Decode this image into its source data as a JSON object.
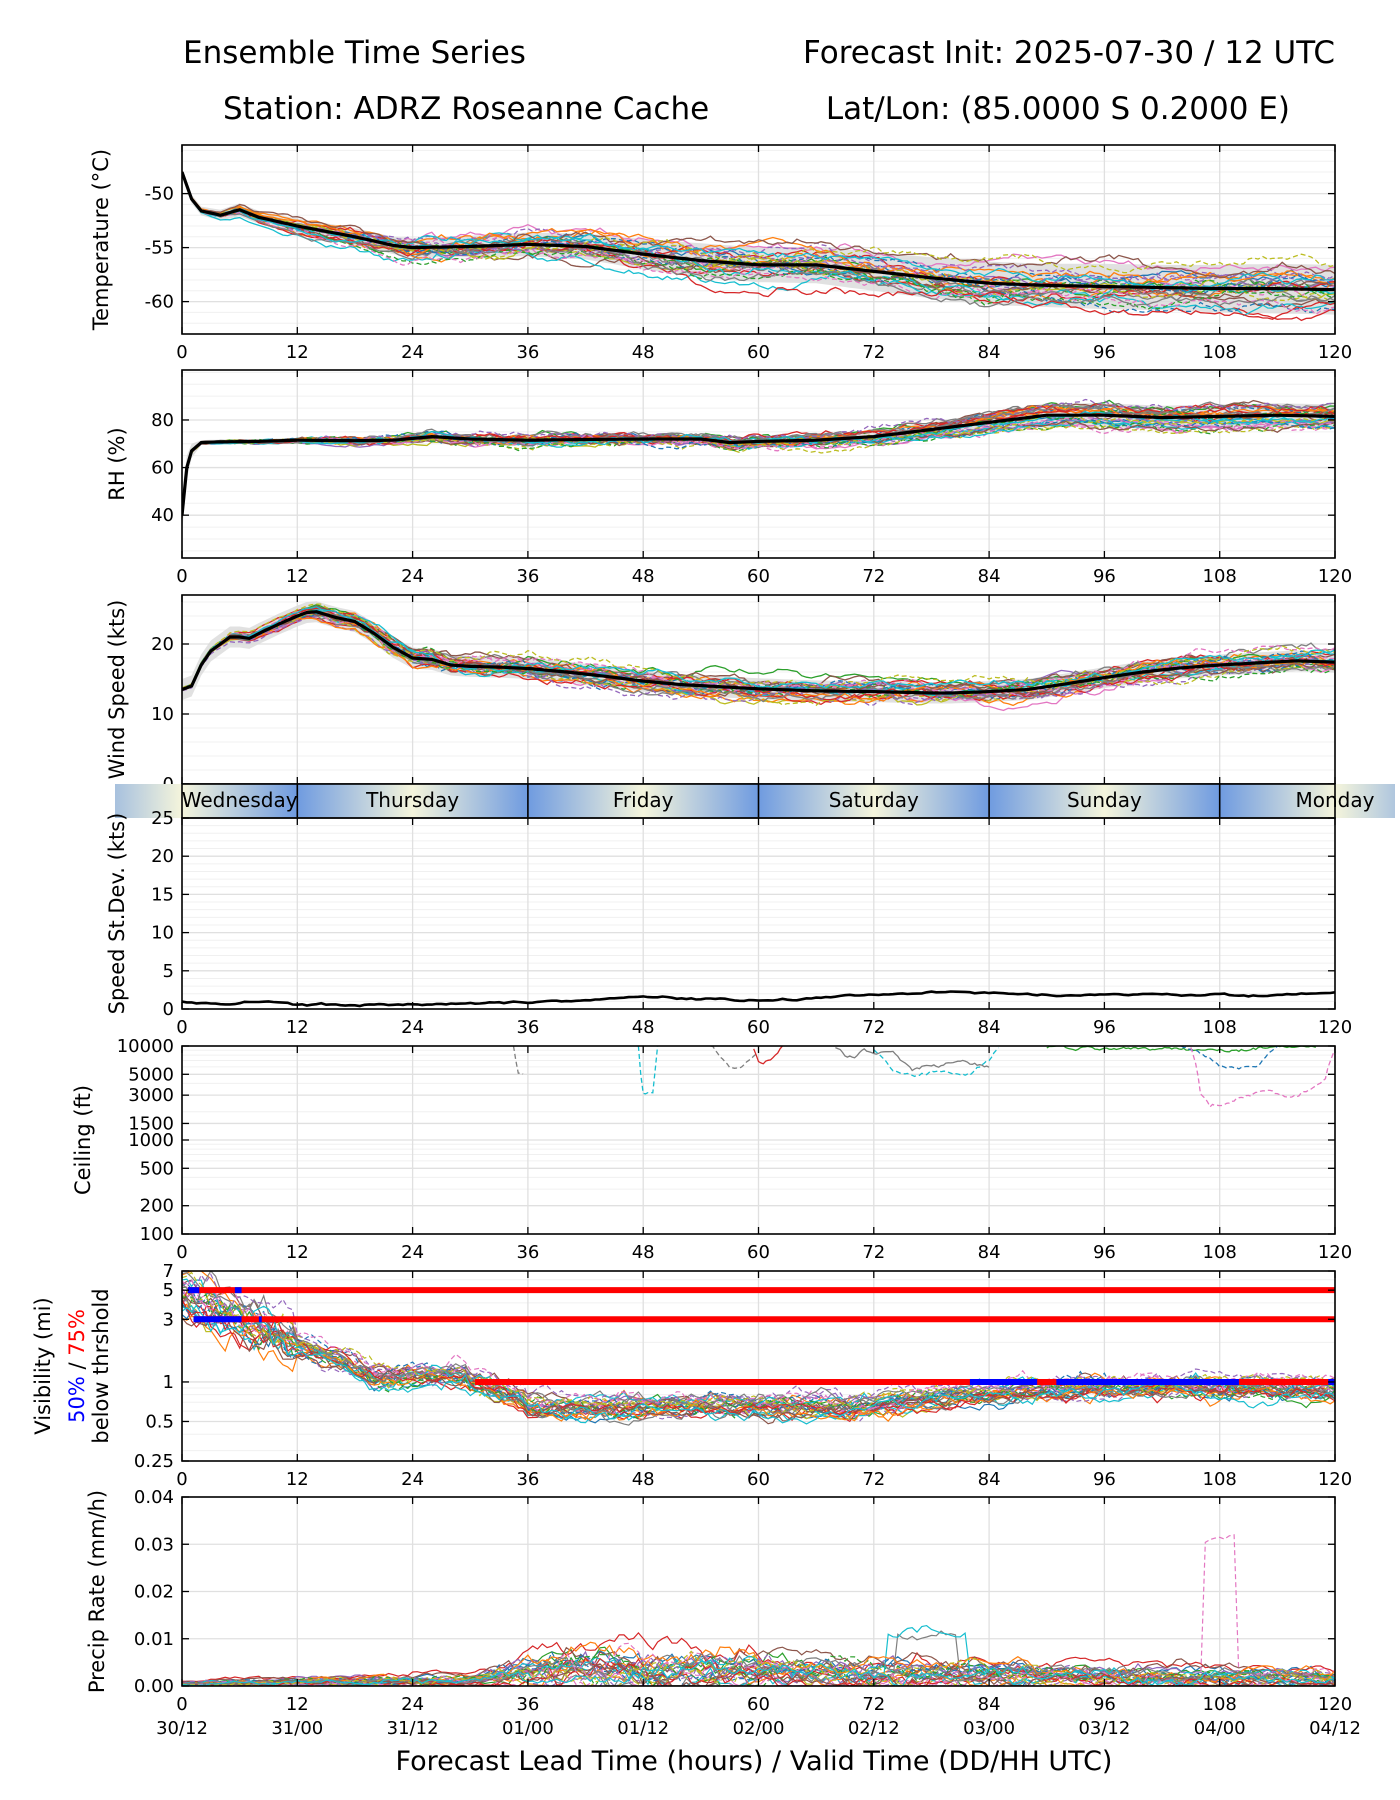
{
  "header": {
    "title_left": "Ensemble Time Series",
    "title_right": "Forecast Init: 2025-07-30 / 12 UTC",
    "station": "Station: ADRZ Roseanne Cache",
    "latlon": "Lat/Lon: (85.0000 S 0.2000 E)",
    "xlabel": "Forecast Lead Time (hours) / Valid Time (DD/HH UTC)"
  },
  "colors": {
    "mean": "#000000",
    "spread": "#d9d9d9",
    "threshold_75": "#ff0000",
    "threshold_50": "#0000ff",
    "day_band_light": "#f5f5dc",
    "day_band_blue": "#6f9be0",
    "grid": "#e0e0e0",
    "members": [
      "#1f77b4",
      "#ff7f0e",
      "#2ca02c",
      "#d62728",
      "#9467bd",
      "#8c564b",
      "#e377c2",
      "#7f7f7f",
      "#bcbd22",
      "#17becf"
    ]
  },
  "chart_data": [
    {
      "type": "line",
      "panel": "temperature",
      "ylabel": "Temperature (°C)",
      "xlim": [
        0,
        120
      ],
      "ylim": [
        -63,
        -45.5
      ],
      "x_ticks": [
        0,
        12,
        24,
        36,
        48,
        60,
        72,
        84,
        96,
        108,
        120
      ],
      "y_ticks": [
        -50,
        -55,
        -60
      ],
      "mean": {
        "x": [
          0,
          1,
          2,
          4,
          6,
          8,
          12,
          18,
          22,
          24,
          30,
          36,
          42,
          48,
          54,
          60,
          66,
          72,
          78,
          84,
          90,
          96,
          102,
          108,
          114,
          120
        ],
        "y": [
          -48,
          -50.5,
          -51.6,
          -52,
          -51.5,
          -52.2,
          -53,
          -54,
          -54.8,
          -55,
          -54.9,
          -54.7,
          -54.9,
          -55.6,
          -56.2,
          -56.6,
          -56.6,
          -57.2,
          -57.8,
          -58.3,
          -58.5,
          -58.6,
          -58.7,
          -58.8,
          -58.8,
          -58.9
        ]
      },
      "spread_half_width": [
        0.3,
        0.4,
        0.4,
        0.5,
        0.6,
        0.6,
        0.7,
        0.8,
        0.8,
        0.9,
        1.0,
        1.1,
        1.2,
        1.4,
        1.6,
        1.6,
        1.7,
        1.8,
        1.9,
        2.0,
        2.0,
        2.1,
        2.1,
        2.2,
        2.3,
        2.3
      ],
      "member_count": 30
    },
    {
      "type": "line",
      "panel": "rh",
      "ylabel": "RH (%)",
      "xlim": [
        0,
        120
      ],
      "ylim": [
        22,
        101
      ],
      "x_ticks": [
        0,
        12,
        24,
        36,
        48,
        60,
        72,
        84,
        96,
        108,
        120
      ],
      "y_ticks": [
        40,
        60,
        80
      ],
      "mean": {
        "x": [
          0,
          0.5,
          1,
          2,
          4,
          8,
          12,
          18,
          22,
          26,
          30,
          36,
          42,
          48,
          54,
          57,
          60,
          66,
          72,
          78,
          84,
          90,
          96,
          102,
          108,
          114,
          120
        ],
        "y": [
          40,
          60,
          67,
          70.5,
          70.8,
          71,
          71.5,
          71.3,
          71.5,
          73,
          72,
          71.5,
          71.8,
          72,
          72,
          70.5,
          71,
          71.5,
          73,
          76,
          79,
          82,
          82,
          81,
          81.5,
          82,
          81.5
        ]
      },
      "spread_half_width": [
        8,
        5,
        3,
        1,
        1,
        1,
        1,
        1,
        1,
        1.2,
        1.2,
        1.2,
        1.3,
        1.4,
        1.5,
        1.5,
        1.6,
        2,
        2.5,
        3,
        4,
        5,
        5,
        5,
        5,
        5,
        5
      ],
      "member_count": 30
    },
    {
      "type": "line",
      "panel": "wind_speed",
      "ylabel": "Wind Speed (kts)",
      "xlim": [
        0,
        120
      ],
      "ylim": [
        0,
        27
      ],
      "x_ticks": [
        0,
        12,
        24,
        36,
        48,
        60,
        72,
        84,
        96,
        108,
        120
      ],
      "y_ticks": [
        0,
        10,
        20
      ],
      "mean": {
        "x": [
          0,
          1,
          2,
          3,
          4,
          5,
          6,
          7,
          8,
          10,
          12,
          13,
          14,
          15,
          16,
          18,
          20,
          22,
          24,
          26,
          28,
          30,
          33,
          36,
          40,
          44,
          48,
          52,
          56,
          60,
          66,
          72,
          78,
          80,
          84,
          88,
          92,
          96,
          100,
          104,
          108,
          112,
          116,
          120
        ],
        "y": [
          13.5,
          14,
          17,
          19,
          20,
          21,
          21,
          20.8,
          21.5,
          22.8,
          24,
          24.5,
          24.6,
          24.2,
          23.8,
          23.2,
          21.5,
          19.5,
          18,
          17.8,
          17,
          16.8,
          16.7,
          16.5,
          16,
          15.4,
          14.7,
          14.2,
          13.9,
          13.6,
          13.3,
          13.2,
          13,
          13,
          13.2,
          13.5,
          14.3,
          15.2,
          16,
          16.6,
          17,
          17.3,
          17.6,
          17.4
        ]
      },
      "spread_half_width": 1.5,
      "member_count": 30
    },
    {
      "type": "band",
      "panel": "day_of_week",
      "days": [
        "Wednesday",
        "Thursday",
        "Friday",
        "Saturday",
        "Sunday",
        "Monday"
      ],
      "day_boundaries": [
        12,
        36,
        60,
        84,
        108
      ]
    },
    {
      "type": "line",
      "panel": "speed_stdev",
      "ylabel": "Speed St.Dev. (kts)",
      "xlim": [
        0,
        120
      ],
      "ylim": [
        0,
        25
      ],
      "x_ticks": [
        0,
        12,
        24,
        36,
        48,
        60,
        72,
        84,
        96,
        108,
        120
      ],
      "y_ticks": [
        0,
        5,
        10,
        15,
        20,
        25
      ],
      "series": [
        {
          "x": [
            0,
            4,
            8,
            12,
            18,
            24,
            30,
            36,
            40,
            44,
            48,
            54,
            60,
            64,
            68,
            72,
            76,
            80,
            84,
            88,
            92,
            96,
            100,
            104,
            108,
            112,
            116,
            120
          ],
          "y": [
            0.9,
            0.7,
            1.0,
            0.6,
            0.5,
            0.6,
            0.7,
            0.9,
            1.2,
            1.3,
            1.6,
            1.3,
            1.1,
            1.3,
            1.6,
            1.9,
            2.1,
            2.2,
            2.1,
            1.9,
            1.7,
            1.9,
            2.0,
            1.8,
            2.0,
            1.7,
            1.9,
            2.2
          ]
        }
      ]
    },
    {
      "type": "line",
      "panel": "ceiling",
      "ylabel": "Ceiling (ft)",
      "xlim": [
        0,
        120
      ],
      "ylim": [
        100,
        10000
      ],
      "yscale": "log",
      "x_ticks": [
        0,
        12,
        24,
        36,
        48,
        60,
        72,
        84,
        96,
        108,
        120
      ],
      "y_ticks": [
        100,
        200,
        500,
        1000,
        1500,
        3000,
        5000,
        10000
      ],
      "series": [
        {
          "style": "dashed",
          "color_index": 7,
          "x": [
            34.5,
            34.8,
            35,
            36,
            35.8,
            35.5
          ],
          "y": [
            10000,
            6500,
            5400,
            5400,
            7000,
            10000
          ]
        },
        {
          "style": "dashed",
          "color_index": 9,
          "x": [
            47.5,
            47.8,
            48,
            49,
            49.2,
            49.5
          ],
          "y": [
            10000,
            4000,
            3200,
            3200,
            4500,
            10000
          ]
        },
        {
          "style": "dashed",
          "color_index": 7,
          "x": [
            55,
            57,
            58,
            60
          ],
          "y": [
            10000,
            6200,
            6000,
            8000
          ]
        },
        {
          "style": "solid",
          "color_index": 3,
          "x": [
            59.5,
            60,
            61,
            62,
            62.5
          ],
          "y": [
            9500,
            7000,
            6800,
            8500,
            10000
          ]
        },
        {
          "style": "solid",
          "color_index": 7,
          "x": [
            68,
            69,
            70,
            71,
            74,
            76,
            78,
            81,
            84
          ],
          "y": [
            10000,
            8000,
            7500,
            9000,
            8000,
            5600,
            6000,
            6800,
            6000
          ]
        },
        {
          "style": "dashed",
          "color_index": 9,
          "x": [
            72,
            74,
            76,
            78,
            80,
            82,
            84,
            85
          ],
          "y": [
            9000,
            5500,
            5000,
            5400,
            5200,
            5000,
            7000,
            10000
          ]
        },
        {
          "style": "solid",
          "color_index": 2,
          "x": [
            90,
            94,
            98,
            102,
            106,
            110,
            114,
            118
          ],
          "y": [
            10000,
            9500,
            10000,
            9000,
            9200,
            8800,
            10000,
            10000
          ]
        },
        {
          "style": "dashed",
          "color_index": 0,
          "x": [
            104,
            106,
            108,
            110,
            112,
            114
          ],
          "y": [
            10000,
            8500,
            6000,
            5800,
            6500,
            10000
          ]
        },
        {
          "style": "dashed",
          "color_index": 6,
          "x": [
            105,
            106,
            107,
            109,
            111,
            113,
            115,
            117,
            119,
            120
          ],
          "y": [
            10000,
            3200,
            2200,
            2500,
            3000,
            3300,
            2800,
            3200,
            4500,
            9500
          ]
        }
      ]
    },
    {
      "type": "line",
      "panel": "visibility",
      "ylabel": "Visibility (mi)",
      "ylabel_extra": [
        "50%",
        " / ",
        "75%",
        "below thrshold"
      ],
      "xlim": [
        0,
        120
      ],
      "ylim": [
        0.25,
        7
      ],
      "yscale": "log",
      "x_ticks": [
        0,
        12,
        24,
        36,
        48,
        60,
        72,
        84,
        96,
        108,
        120
      ],
      "y_ticks": [
        0.25,
        0.5,
        1,
        3,
        5,
        7
      ],
      "threshold_75_segments": [
        {
          "y": 5,
          "x": [
            0.6,
            120
          ]
        },
        {
          "y": 3,
          "x": [
            1.2,
            120
          ]
        },
        {
          "y": 1,
          "x": [
            30.5,
            120
          ]
        }
      ],
      "threshold_50_segments": [
        {
          "y": 5,
          "x": [
            0.6,
            1.8
          ]
        },
        {
          "y": 5,
          "x": [
            5.5,
            6.2
          ]
        },
        {
          "y": 3,
          "x": [
            1.2,
            6.2
          ]
        },
        {
          "y": 3,
          "x": [
            8,
            8.3
          ]
        },
        {
          "y": 1,
          "x": [
            82,
            89
          ]
        },
        {
          "y": 1,
          "x": [
            91,
            110
          ]
        },
        {
          "y": 1,
          "x": [
            119.3,
            120
          ]
        }
      ],
      "member_count": 30
    },
    {
      "type": "line",
      "panel": "precip_rate",
      "ylabel": "Precip Rate (mm/h)",
      "xlim": [
        0,
        120
      ],
      "ylim": [
        0,
        0.04
      ],
      "x_ticks": [
        0,
        12,
        24,
        36,
        48,
        60,
        72,
        84,
        96,
        108,
        120
      ],
      "y_ticks": [
        0.0,
        0.01,
        0.02,
        0.03,
        0.04
      ],
      "x_ticklabels_bottom": [
        "30/12",
        "31/00",
        "31/12",
        "01/00",
        "01/12",
        "02/00",
        "02/12",
        "03/00",
        "03/12",
        "04/00",
        "04/12"
      ],
      "member_count": 30
    }
  ]
}
